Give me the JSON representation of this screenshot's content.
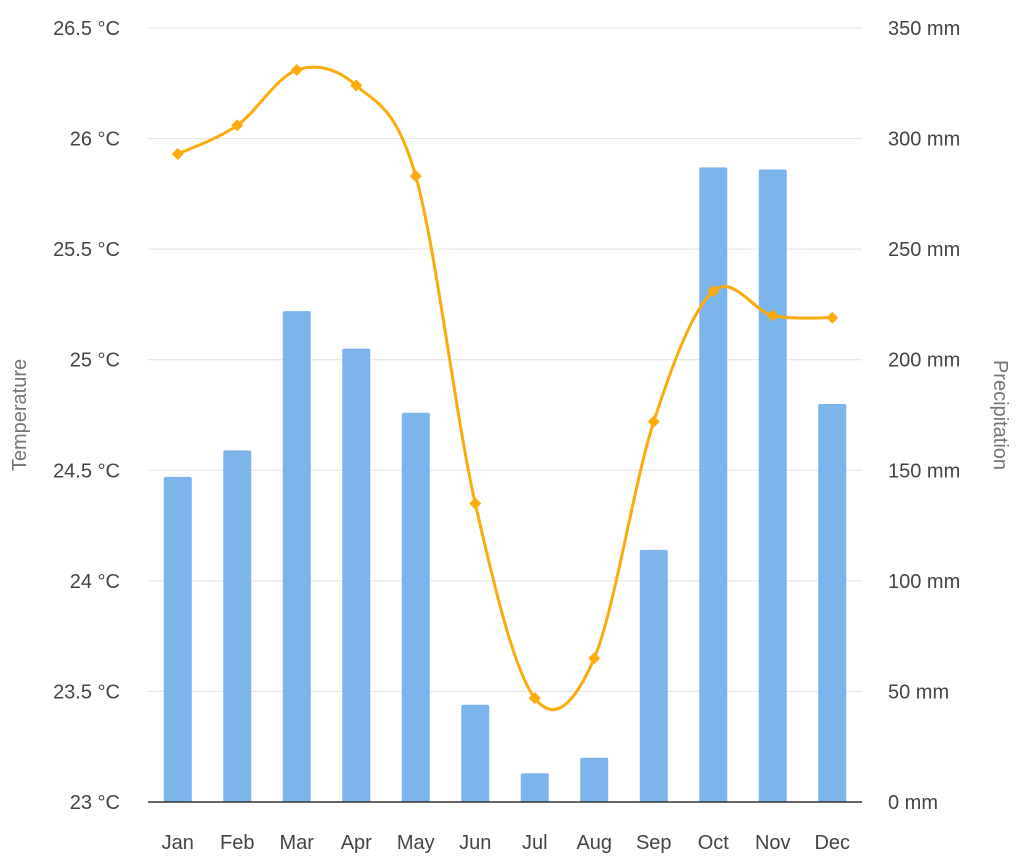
{
  "chart_data": {
    "type": "bar",
    "categories": [
      "Jan",
      "Feb",
      "Mar",
      "Apr",
      "May",
      "Jun",
      "Jul",
      "Aug",
      "Sep",
      "Oct",
      "Nov",
      "Dec"
    ],
    "series": [
      {
        "type": "bar",
        "axis": "right",
        "color": "#7cb4ec",
        "values": [
          147,
          159,
          222,
          205,
          176,
          44,
          13,
          20,
          114,
          287,
          286,
          180
        ]
      },
      {
        "type": "line",
        "axis": "left",
        "color": "#fbab0b",
        "marker": "diamond",
        "smooth": true,
        "values": [
          25.93,
          26.06,
          26.31,
          26.24,
          25.83,
          24.35,
          23.47,
          23.65,
          24.72,
          25.31,
          25.2,
          25.19
        ]
      }
    ],
    "yleft": {
      "label": "Temperature",
      "min": 23,
      "max": 26.5,
      "ticks": [
        "23 °C",
        "23.5 °C",
        "24 °C",
        "24.5 °C",
        "25 °C",
        "25.5 °C",
        "26 °C",
        "26.5 °C"
      ]
    },
    "yright": {
      "label": "Precipitation",
      "min": 0,
      "max": 350,
      "ticks": [
        "0 mm",
        "50 mm",
        "100 mm",
        "150 mm",
        "200 mm",
        "250 mm",
        "300 mm",
        "350 mm"
      ]
    },
    "grid": true,
    "legend": "none"
  }
}
